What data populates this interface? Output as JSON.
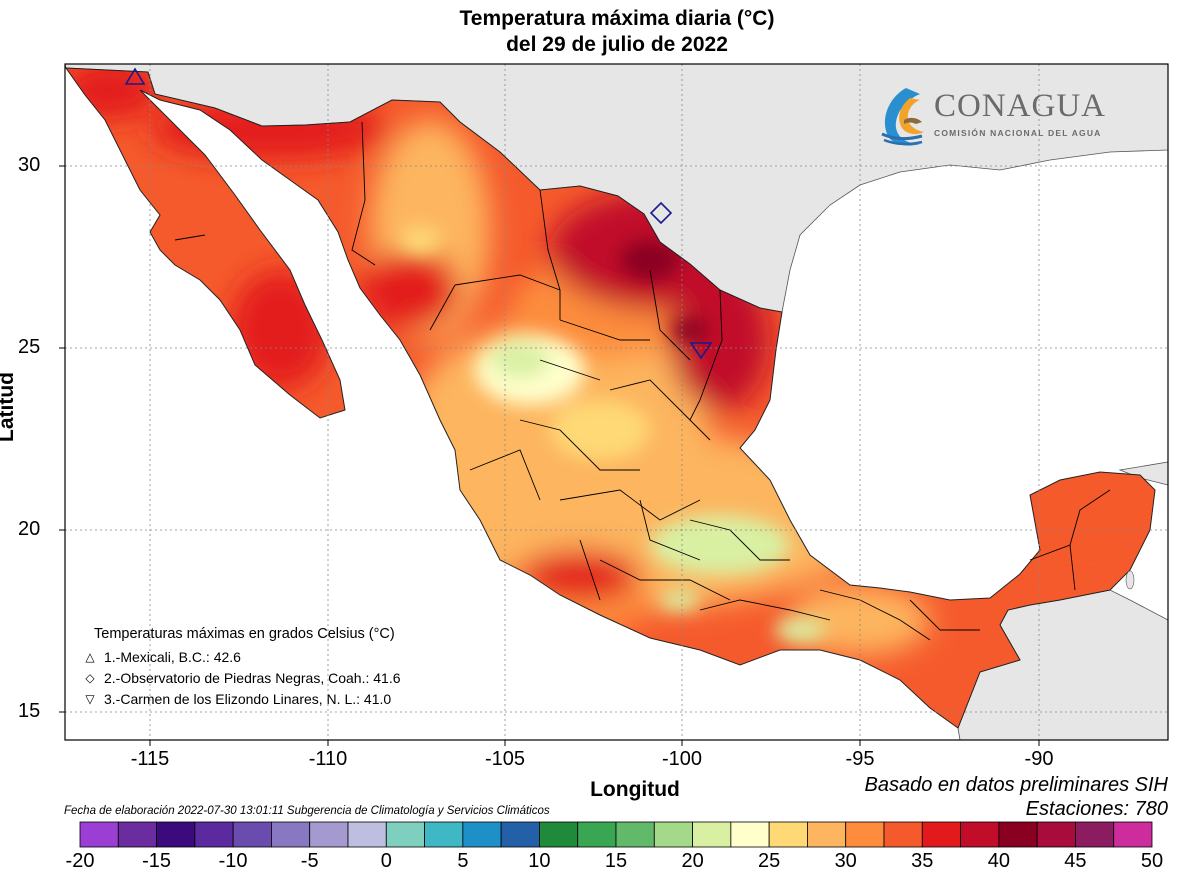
{
  "title": {
    "line1": "Temperatura máxima diaria (°C)",
    "line2": "del 29 de julio de 2022"
  },
  "axes": {
    "xlabel": "Longitud",
    "ylabel": "Latitud",
    "x_ticks": [
      "-115",
      "-110",
      "-105",
      "-100",
      "-95",
      "-90"
    ],
    "y_ticks": [
      "30",
      "25",
      "20",
      "15"
    ],
    "lon_range": [
      -117,
      -86.5
    ],
    "lat_range": [
      14.3,
      32.8
    ],
    "grid": true
  },
  "logo": {
    "name": "CONAGUA",
    "subtitle": "COMISIÓN NACIONAL DEL AGUA"
  },
  "legend": {
    "title": "Temperaturas máximas en grados Celsius (°C)",
    "items": [
      {
        "symbol": "△",
        "label": "1.-Mexicali, B.C.: 42.6"
      },
      {
        "symbol": "◇",
        "label": "2.-Observatorio de Piedras Negras, Coah.: 41.6"
      },
      {
        "symbol": "▽",
        "label": "3.-Carmen de los Elizondo Linares, N. L.: 41.0"
      }
    ]
  },
  "markers": [
    {
      "shape": "triangle-up",
      "station": "Mexicali, B.C.",
      "value": 42.6,
      "lon": -115.3,
      "lat": 32.5
    },
    {
      "shape": "diamond",
      "station": "Observatorio de Piedras Negras, Coah.",
      "value": 41.6,
      "lon": -100.5,
      "lat": 28.7
    },
    {
      "shape": "triangle-down",
      "station": "Carmen de los Elizondo Linares, N. L.",
      "value": 41.0,
      "lon": -99.4,
      "lat": 24.9
    }
  ],
  "notes": {
    "based_on": "Basado en datos preliminares SIH",
    "stations": "Estaciones:  780",
    "elaboration": "Fecha de elaboración 2022-07-30 13:01:11 Subgerencia de Climatología y Servicios Climáticos"
  },
  "colorbar": {
    "tick_labels": [
      "-20",
      "-15",
      "-10",
      "-5",
      "0",
      "5",
      "10",
      "15",
      "20",
      "25",
      "30",
      "35",
      "40",
      "45",
      "50"
    ],
    "colors": [
      "#9b3fd4",
      "#6a2c9e",
      "#3b0a7c",
      "#5b2a9e",
      "#6a4caf",
      "#8878c2",
      "#a49ad0",
      "#bebee0",
      "#7fcfbf",
      "#3fb7c5",
      "#1f8fc8",
      "#2460a8",
      "#1f8a3a",
      "#39a653",
      "#63b96a",
      "#a5d98a",
      "#d9f0a3",
      "#ffffcc",
      "#fed976",
      "#fdb55f",
      "#fd8d3c",
      "#f55a2c",
      "#e31a1c",
      "#c10d2a",
      "#8a0020",
      "#a80c3c",
      "#8b1c60",
      "#cc2c9c"
    ]
  },
  "colors": {
    "ocean": "#ffffff",
    "land_neighbor": "#e6e6e6",
    "state_border": "#000000",
    "marker": "#1a1a8c"
  }
}
